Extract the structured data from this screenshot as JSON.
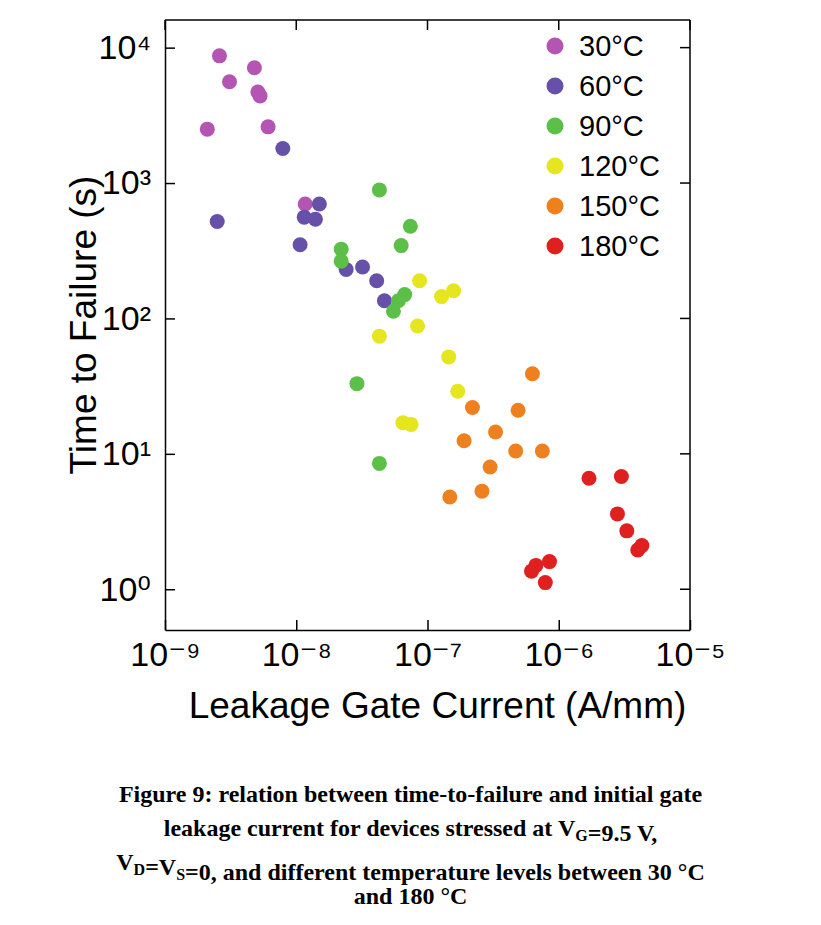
{
  "chart_data": {
    "type": "scatter",
    "title": [
      "Figure 9: relation between time-to-failure and initial gate",
      "leakage current for devices stressed at VG=9.5 V,",
      "VD=VS=0, and different temperature levels between 30 °C",
      "and 180 °C"
    ],
    "x_label": "Leakage Gate Current (A/mm)",
    "y_label": "Time to Failure (s)",
    "log": true,
    "legend": "top-right",
    "marker": "circle",
    "xlim": [
      1e-09,
      1e-05
    ],
    "ylim": [
      0.5,
      16000
    ],
    "xticks": [
      {
        "value": 1e-09,
        "label": "10⁻⁹"
      },
      {
        "value": 1e-08,
        "label": "10⁻⁸"
      },
      {
        "value": 1e-07,
        "label": "10⁻⁷"
      },
      {
        "value": 1e-06,
        "label": "10⁻⁶"
      },
      {
        "value": 1e-05,
        "label": "10⁻⁵"
      }
    ],
    "yticks": [
      {
        "value": 1,
        "label": "10⁰"
      },
      {
        "value": 10,
        "label": "10¹"
      },
      {
        "value": 100,
        "label": "10²"
      },
      {
        "value": 1000,
        "label": "10³"
      },
      {
        "value": 10000,
        "label": "10⁴"
      }
    ],
    "series": [
      {
        "name": "30°C",
        "color": "#b455b4",
        "x": [
          2.6e-09,
          3.1e-09,
          2.1e-09,
          4.8e-09,
          5.1e-09,
          5.3e-09,
          6.1e-09,
          1.17e-08
        ],
        "values": [
          8700,
          5600,
          2500,
          7100,
          4700,
          4400,
          2600,
          700
        ]
      },
      {
        "name": "60°C",
        "color": "#6650a8",
        "x": [
          7.9e-09,
          2.5e-09,
          1.15e-08,
          1.5e-08,
          1.4e-08,
          1.07e-08,
          2.4e-08,
          3.2e-08,
          4.1e-08,
          4.7e-08
        ],
        "values": [
          1800,
          520,
          560,
          700,
          540,
          350,
          230,
          240,
          190,
          135
        ]
      },
      {
        "name": "90°C",
        "color": "#5cbf48",
        "x": [
          4.3e-08,
          7.4e-08,
          2.2e-08,
          2.2e-08,
          6.3e-08,
          6.7e-08,
          6e-08,
          5.5e-08,
          2.9e-08,
          4.3e-08
        ],
        "values": [
          890,
          480,
          325,
          265,
          345,
          150,
          135,
          113,
          33,
          8.5
        ]
      },
      {
        "name": "120°C",
        "color": "#e6e61e",
        "x": [
          8.7e-08,
          1.28e-07,
          1.58e-07,
          4.3e-08,
          8.4e-08,
          1.45e-07,
          1.7e-07,
          6.5e-08,
          7.5e-08
        ],
        "values": [
          190,
          145,
          160,
          74,
          88,
          52,
          29,
          17,
          16.5
        ]
      },
      {
        "name": "150°C",
        "color": "#ef8020",
        "x": [
          6.3e-07,
          4.9e-07,
          2.2e-07,
          1.9e-07,
          3.3e-07,
          4.7e-07,
          7.5e-07,
          3e-07,
          2.6e-07,
          1.48e-07
        ],
        "values": [
          39,
          21,
          22,
          12.5,
          14.5,
          10.5,
          10.5,
          8,
          5.3,
          4.8
        ]
      },
      {
        "name": "180°C",
        "color": "#e0201e",
        "x": [
          1.7e-06,
          3e-06,
          2.8e-06,
          3.3e-06,
          4.3e-06,
          4e-06,
          8.5e-07,
          6.7e-07,
          6.2e-07,
          7.9e-07
        ],
        "values": [
          6.6,
          6.8,
          3.6,
          2.7,
          2.1,
          1.95,
          1.6,
          1.5,
          1.36,
          1.12
        ]
      }
    ]
  }
}
